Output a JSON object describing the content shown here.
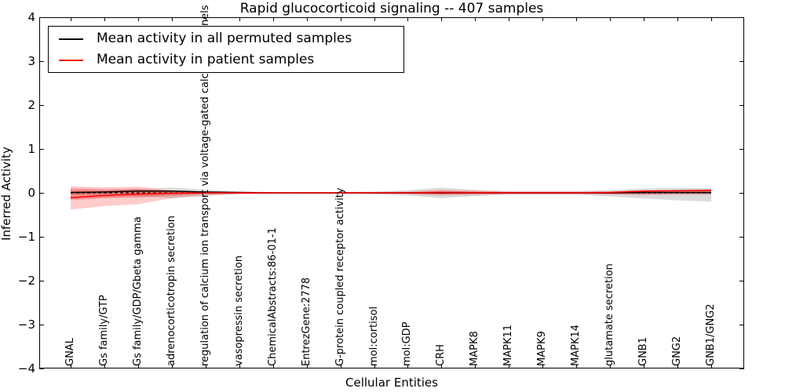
{
  "figure": {
    "title": "Rapid glucocorticoid signaling -- 407 samples",
    "xlabel": "Cellular Entities",
    "ylabel": "Inferred Activity"
  },
  "legend": {
    "position": "upper left",
    "items": [
      {
        "label": "Mean activity in all permuted samples",
        "color": "#000000"
      },
      {
        "label": "Mean activity in patient samples",
        "color": "#ff0000"
      }
    ]
  },
  "chart_data": {
    "type": "line",
    "title": "Rapid glucocorticoid signaling -- 407 samples",
    "xlabel": "Cellular Entities",
    "ylabel": "Inferred Activity",
    "ylim": [
      -4,
      4
    ],
    "yticks": [
      4,
      3,
      2,
      1,
      0,
      -1,
      -2,
      -3,
      -4
    ],
    "grid": false,
    "legend_position": "upper left",
    "categories": [
      "GNAL",
      "Gs family/GTP",
      "Gs family/GDP/Gbeta gamma",
      "adrenocorticotropin secretion",
      "regulation of calcium ion transport via voltage-gated calcium channels",
      "vasopressin secretion",
      "ChemicalAbstracts:86-01-1",
      "EntrezGene:2778",
      "G-protein coupled receptor activity",
      "mol:cortisol",
      "mol:GDP",
      "CRH",
      "MAPK8",
      "MAPK11",
      "MAPK9",
      "MAPK14",
      "glutamate secretion",
      "GNB1",
      "GNG2",
      "GNB1/GNG2"
    ],
    "series": [
      {
        "name": "zero-reference",
        "color": "#000000",
        "style": "dashed",
        "values": [
          0,
          0,
          0,
          0,
          0,
          0,
          0,
          0,
          0,
          0,
          0,
          0,
          0,
          0,
          0,
          0,
          0,
          0,
          0,
          0
        ]
      },
      {
        "name": "Mean activity in all permuted samples",
        "color": "#000000",
        "style": "solid",
        "values": [
          0.01,
          0.02,
          0.04,
          0.04,
          0.02,
          0.01,
          0,
          0,
          0,
          0,
          0,
          0,
          0,
          0,
          0,
          0,
          0,
          0.01,
          0.01,
          0.01
        ]
      },
      {
        "name": "Mean activity in patient samples",
        "color": "#ff0000",
        "style": "solid",
        "values": [
          -0.11,
          -0.06,
          -0.03,
          -0.01,
          0,
          0,
          0,
          0,
          0,
          0,
          0,
          0.01,
          0.005,
          0,
          0,
          0,
          0.01,
          0.04,
          0.05,
          0.06
        ]
      }
    ],
    "bands": [
      {
        "name": "permuted-samples-range",
        "color": "#888888",
        "opacity": 0.3,
        "upper": [
          0.05,
          0.05,
          0.08,
          0.12,
          0.07,
          0.03,
          0.02,
          0.02,
          0.02,
          0.03,
          0.06,
          0.12,
          0.07,
          0.04,
          0.04,
          0.04,
          0.06,
          0.1,
          0.11,
          0.11
        ],
        "lower": [
          -0.05,
          -0.05,
          -0.08,
          -0.12,
          -0.07,
          -0.03,
          -0.02,
          -0.02,
          -0.02,
          -0.03,
          -0.06,
          -0.12,
          -0.07,
          -0.04,
          -0.04,
          -0.04,
          -0.08,
          -0.13,
          -0.17,
          -0.2
        ]
      },
      {
        "name": "patient-samples-range-outer",
        "color": "#ff0000",
        "opacity": 0.2,
        "upper": [
          0.15,
          0.13,
          0.14,
          0.06,
          0.03,
          0.02,
          0.02,
          0.02,
          0.02,
          0.02,
          0.03,
          0.07,
          0.05,
          0.03,
          0.03,
          0.03,
          0.04,
          0.06,
          0.06,
          0.06
        ],
        "lower": [
          -0.38,
          -0.3,
          -0.26,
          -0.12,
          -0.05,
          -0.03,
          -0.02,
          -0.02,
          -0.02,
          -0.02,
          -0.03,
          -0.06,
          -0.05,
          -0.03,
          -0.03,
          -0.03,
          -0.04,
          -0.05,
          -0.04,
          -0.04
        ]
      },
      {
        "name": "patient-samples-range-inner",
        "color": "#ff0000",
        "opacity": 0.3,
        "upper": [
          0.1,
          0.08,
          0.09,
          0.04,
          0.02,
          0.01,
          0.01,
          0.01,
          0.01,
          0.01,
          0.02,
          0.04,
          0.03,
          0.02,
          0.02,
          0.02,
          0.02,
          0.05,
          0.05,
          0.05
        ],
        "lower": [
          -0.16,
          -0.12,
          -0.1,
          -0.06,
          -0.03,
          -0.02,
          -0.01,
          -0.01,
          -0.01,
          -0.01,
          -0.02,
          -0.03,
          -0.02,
          -0.02,
          -0.02,
          -0.02,
          -0.02,
          -0.03,
          -0.02,
          -0.02
        ]
      }
    ]
  }
}
